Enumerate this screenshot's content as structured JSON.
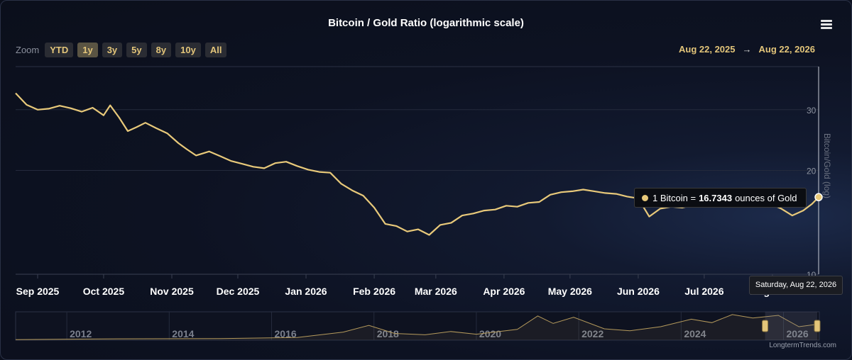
{
  "title": "Bitcoin / Gold Ratio (logarithmic scale)",
  "zoom": {
    "label": "Zoom",
    "buttons": [
      "YTD",
      "1y",
      "3y",
      "5y",
      "8y",
      "10y",
      "All"
    ],
    "active": "1y"
  },
  "range": {
    "start": "Aug 22, 2025",
    "arrow": "→",
    "end": "Aug 22, 2026"
  },
  "menu_icon": "hamburger-menu-icon",
  "tooltip": {
    "prefix": "1 Bitcoin =",
    "value": "16.7343",
    "suffix": "ounces of Gold",
    "date": "Saturday, Aug 22, 2026"
  },
  "credit": "LongtermTrends.com",
  "colors": {
    "line": "#e8c97a",
    "background": "#0d1222",
    "accent": "#e3c57a"
  },
  "chart_data": {
    "type": "line",
    "title": "Bitcoin / Gold Ratio (logarithmic scale)",
    "ylabel": "Bitcoin/Gold (log)",
    "yscale": "log",
    "ylim": [
      10,
      40
    ],
    "yticks": [
      10,
      20,
      30
    ],
    "xlim": [
      "2025-08-22",
      "2026-08-22"
    ],
    "xticks": [
      "Sep 2025",
      "Oct 2025",
      "Nov 2025",
      "Dec 2025",
      "Jan 2026",
      "Feb 2026",
      "Mar 2026",
      "Apr 2026",
      "May 2026",
      "Jun 2026",
      "Jul 2026",
      "Aug 2026"
    ],
    "grid": true,
    "series": [
      {
        "color": "#e8c97a",
        "x": [
          "2025-08-22",
          "2025-08-27",
          "2025-09-01",
          "2025-09-06",
          "2025-09-11",
          "2025-09-16",
          "2025-09-21",
          "2025-09-26",
          "2025-10-01",
          "2025-10-04",
          "2025-10-08",
          "2025-10-12",
          "2025-10-16",
          "2025-10-20",
          "2025-10-25",
          "2025-10-30",
          "2025-11-04",
          "2025-11-08",
          "2025-11-12",
          "2025-11-18",
          "2025-11-23",
          "2025-11-28",
          "2025-12-03",
          "2025-12-08",
          "2025-12-13",
          "2025-12-18",
          "2025-12-23",
          "2025-12-28",
          "2026-01-02",
          "2026-01-07",
          "2026-01-12",
          "2026-01-17",
          "2026-01-22",
          "2026-01-27",
          "2026-02-01",
          "2026-02-06",
          "2026-02-11",
          "2026-02-16",
          "2026-02-21",
          "2026-02-26",
          "2026-03-03",
          "2026-03-08",
          "2026-03-13",
          "2026-03-18",
          "2026-03-23",
          "2026-03-28",
          "2026-04-02",
          "2026-04-07",
          "2026-04-12",
          "2026-04-17",
          "2026-04-22",
          "2026-04-27",
          "2026-05-02",
          "2026-05-07",
          "2026-05-12",
          "2026-05-17",
          "2026-05-22",
          "2026-05-27",
          "2026-06-01",
          "2026-06-06",
          "2026-06-11",
          "2026-06-16",
          "2026-06-21",
          "2026-06-26",
          "2026-07-01",
          "2026-07-06",
          "2026-07-11",
          "2026-07-16",
          "2026-07-21",
          "2026-07-26",
          "2026-07-31",
          "2026-08-05",
          "2026-08-10",
          "2026-08-15",
          "2026-08-19",
          "2026-08-22"
        ],
        "y": [
          33.5,
          31.0,
          30.0,
          30.2,
          30.8,
          30.3,
          29.6,
          30.4,
          28.9,
          30.9,
          28.5,
          26.0,
          26.7,
          27.5,
          26.5,
          25.6,
          24.0,
          23.0,
          22.1,
          22.7,
          22.0,
          21.3,
          20.9,
          20.5,
          20.3,
          21.0,
          21.2,
          20.6,
          20.1,
          19.8,
          19.7,
          18.3,
          17.5,
          16.9,
          15.6,
          14.0,
          13.8,
          13.3,
          13.5,
          13.0,
          13.9,
          14.1,
          14.8,
          15.0,
          15.3,
          15.4,
          15.8,
          15.7,
          16.1,
          16.2,
          17.0,
          17.3,
          17.4,
          17.6,
          17.4,
          17.2,
          17.1,
          16.8,
          16.6,
          14.7,
          15.5,
          15.7,
          15.6,
          15.9,
          16.1,
          15.9,
          16.0,
          16.1,
          15.8,
          16.3,
          16.0,
          15.5,
          14.8,
          15.3,
          16.0,
          16.7343
        ]
      }
    ],
    "navigator": {
      "ticks": [
        "2012",
        "2014",
        "2016",
        "2018",
        "2020",
        "2022",
        "2024",
        "2026"
      ]
    }
  }
}
